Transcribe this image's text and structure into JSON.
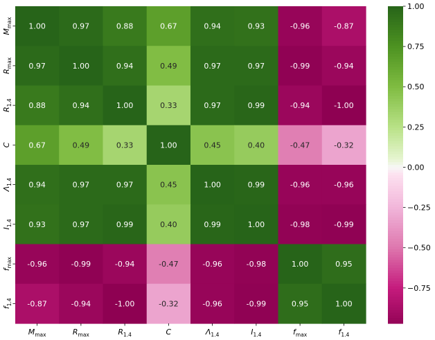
{
  "chart_data": {
    "type": "heatmap",
    "title": "",
    "xlabel": "",
    "ylabel": "",
    "variables": [
      {
        "base": "M",
        "sub": "max"
      },
      {
        "base": "R",
        "sub": "max"
      },
      {
        "base": "R",
        "sub": "1.4"
      },
      {
        "base": "C",
        "sub": ""
      },
      {
        "base": "Λ",
        "sub": "1.4"
      },
      {
        "base": "I",
        "sub": "1.4"
      },
      {
        "base": "f",
        "sub": "max"
      },
      {
        "base": "f",
        "sub": "1.4"
      }
    ],
    "values": [
      [
        1.0,
        0.97,
        0.88,
        0.67,
        0.94,
        0.93,
        -0.96,
        -0.87
      ],
      [
        0.97,
        1.0,
        0.94,
        0.49,
        0.97,
        0.97,
        -0.99,
        -0.94
      ],
      [
        0.88,
        0.94,
        1.0,
        0.33,
        0.97,
        0.99,
        -0.94,
        -1.0
      ],
      [
        0.67,
        0.49,
        0.33,
        1.0,
        0.45,
        0.4,
        -0.47,
        -0.32
      ],
      [
        0.94,
        0.97,
        0.97,
        0.45,
        1.0,
        0.99,
        -0.96,
        -0.96
      ],
      [
        0.93,
        0.97,
        0.99,
        0.4,
        0.99,
        1.0,
        -0.98,
        -0.99
      ],
      [
        -0.96,
        -0.99,
        -0.94,
        -0.47,
        -0.96,
        -0.98,
        1.0,
        0.95
      ],
      [
        -0.87,
        -0.94,
        -1.0,
        -0.32,
        -0.96,
        -0.99,
        0.95,
        1.0
      ]
    ],
    "cell_labels": [
      [
        "1.00",
        "0.97",
        "0.88",
        "0.67",
        "0.94",
        "0.93",
        "-0.96",
        "-0.87"
      ],
      [
        "0.97",
        "1.00",
        "0.94",
        "0.49",
        "0.97",
        "0.97",
        "-0.99",
        "-0.94"
      ],
      [
        "0.88",
        "0.94",
        "1.00",
        "0.33",
        "0.97",
        "0.99",
        "-0.94",
        "-1.00"
      ],
      [
        "0.67",
        "0.49",
        "0.33",
        "1.00",
        "0.45",
        "0.40",
        "-0.47",
        "-0.32"
      ],
      [
        "0.94",
        "0.97",
        "0.97",
        "0.45",
        "1.00",
        "0.99",
        "-0.96",
        "-0.96"
      ],
      [
        "0.93",
        "0.97",
        "0.99",
        "0.40",
        "0.99",
        "1.00",
        "-0.98",
        "-0.99"
      ],
      [
        "-0.96",
        "-0.99",
        "-0.94",
        "-0.47",
        "-0.96",
        "-0.98",
        "1.00",
        "0.95"
      ],
      [
        "-0.87",
        "-0.94",
        "-1.00",
        "-0.32",
        "-0.96",
        "-0.99",
        "0.95",
        "1.00"
      ]
    ],
    "colormap": "PiYG",
    "vmin": -1.0,
    "vmax": 1.0,
    "colorbar": {
      "ticks": [
        1.0,
        0.75,
        0.5,
        0.25,
        0.0,
        -0.25,
        -0.5,
        -0.75
      ],
      "tick_labels": [
        "1.00",
        "0.75",
        "0.50",
        "0.25",
        "0.00",
        "−0.25",
        "−0.50",
        "−0.75"
      ],
      "range": [
        -0.97,
        1.0
      ]
    },
    "colormap_stops": [
      {
        "v": -1.0,
        "c": "#8e0152"
      },
      {
        "v": -0.75,
        "c": "#c51b7d"
      },
      {
        "v": -0.5,
        "c": "#de77ae"
      },
      {
        "v": -0.25,
        "c": "#f1b6da"
      },
      {
        "v": -0.05,
        "c": "#fde0ef"
      },
      {
        "v": 0.0,
        "c": "#f7f7f7"
      },
      {
        "v": 0.05,
        "c": "#e6f5d0"
      },
      {
        "v": 0.25,
        "c": "#b8e186"
      },
      {
        "v": 0.5,
        "c": "#7fbc41"
      },
      {
        "v": 0.75,
        "c": "#4d9221"
      },
      {
        "v": 1.0,
        "c": "#276419"
      }
    ],
    "legend": "right"
  }
}
